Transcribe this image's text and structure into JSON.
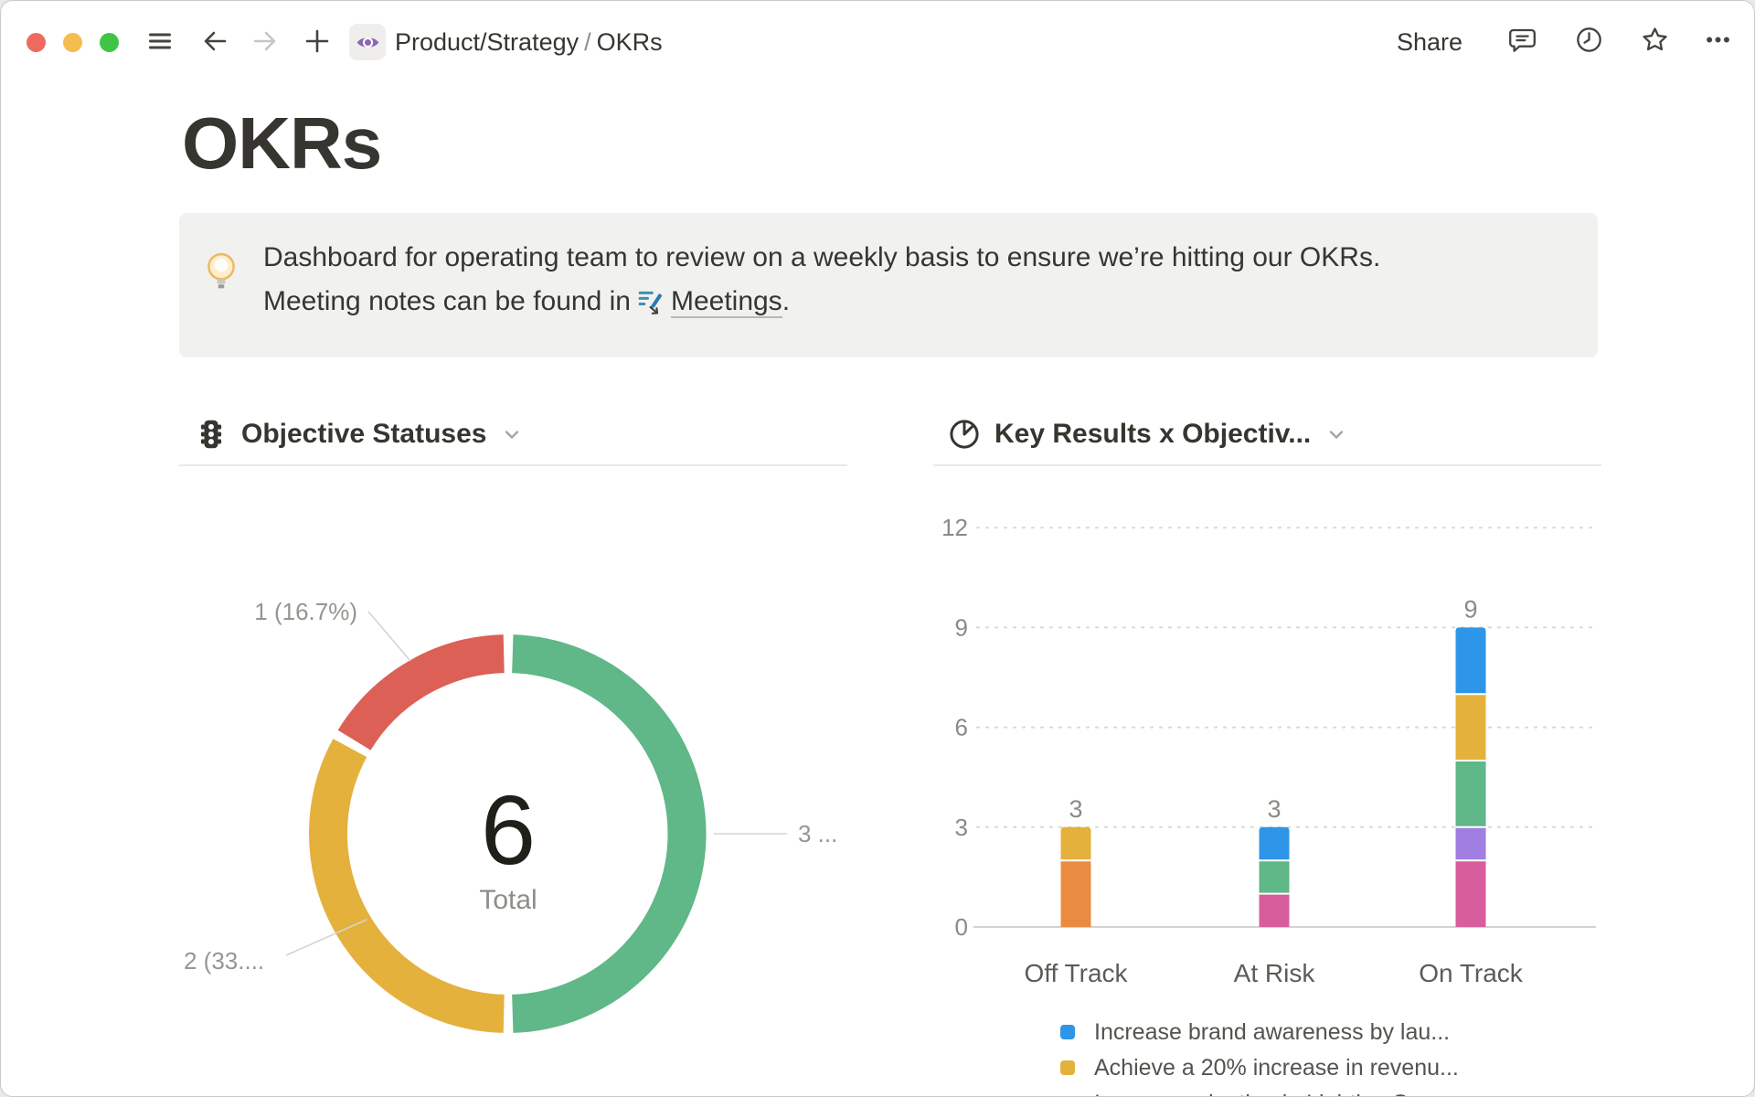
{
  "titlebar": {
    "breadcrumb": {
      "parent": "Product/Strategy",
      "separator": "/",
      "current": "OKRs"
    },
    "share_label": "Share"
  },
  "page": {
    "title": "OKRs",
    "callout": {
      "icon": "lightbulb",
      "line1": "Dashboard for operating team to review on a weekly basis to ensure we’re hitting our OKRs.",
      "line2_prefix": "Meeting notes can be found in",
      "link_text": "Meetings",
      "line2_suffix": "."
    }
  },
  "chart_data": [
    {
      "type": "pie",
      "style": "donut",
      "title": "Objective Statuses",
      "center_value": "6",
      "center_label": "Total",
      "total": 6,
      "slices": [
        {
          "label": "3 ...",
          "value": 3,
          "percent": 50,
          "color": "#60b787"
        },
        {
          "label": "2 (33....",
          "value": 2,
          "percent": 33.3,
          "color": "#e4b13c"
        },
        {
          "label": "1 (16.7%)",
          "value": 1,
          "percent": 16.7,
          "color": "#dc6056"
        }
      ]
    },
    {
      "type": "bar",
      "stacked": true,
      "title": "Key Results x Objectiv...",
      "categories": [
        "Off Track",
        "At Risk",
        "On Track"
      ],
      "totals": [
        3,
        3,
        9
      ],
      "ylim": [
        0,
        12
      ],
      "yticks": [
        0,
        3,
        6,
        9,
        12
      ],
      "grid": "dotted-horizontal",
      "bars": [
        {
          "category": "Off Track",
          "total": 3,
          "segments": [
            {
              "color": "#e98c42",
              "value": 2
            },
            {
              "color": "#e4b13c",
              "value": 1
            }
          ]
        },
        {
          "category": "At Risk",
          "total": 3,
          "segments": [
            {
              "color": "#d75d9d",
              "value": 1
            },
            {
              "color": "#60b787",
              "value": 1
            },
            {
              "color": "#2e96e8",
              "value": 1
            }
          ]
        },
        {
          "category": "On Track",
          "total": 9,
          "segments": [
            {
              "color": "#d75d9d",
              "value": 2
            },
            {
              "color": "#a07ee2",
              "value": 1
            },
            {
              "color": "#60b787",
              "value": 2
            },
            {
              "color": "#e4b13c",
              "value": 2
            },
            {
              "color": "#2e96e8",
              "value": 2
            }
          ]
        }
      ],
      "legend_position": "bottom-left",
      "legend": [
        {
          "color": "#2e96e8",
          "label": "Increase brand awareness by lau..."
        },
        {
          "color": "#e4b13c",
          "label": "Achieve a 20% increase in revenu..."
        },
        {
          "color": "#60b787",
          "label": "Increase adoption in Lighting Sea..."
        }
      ]
    }
  ]
}
